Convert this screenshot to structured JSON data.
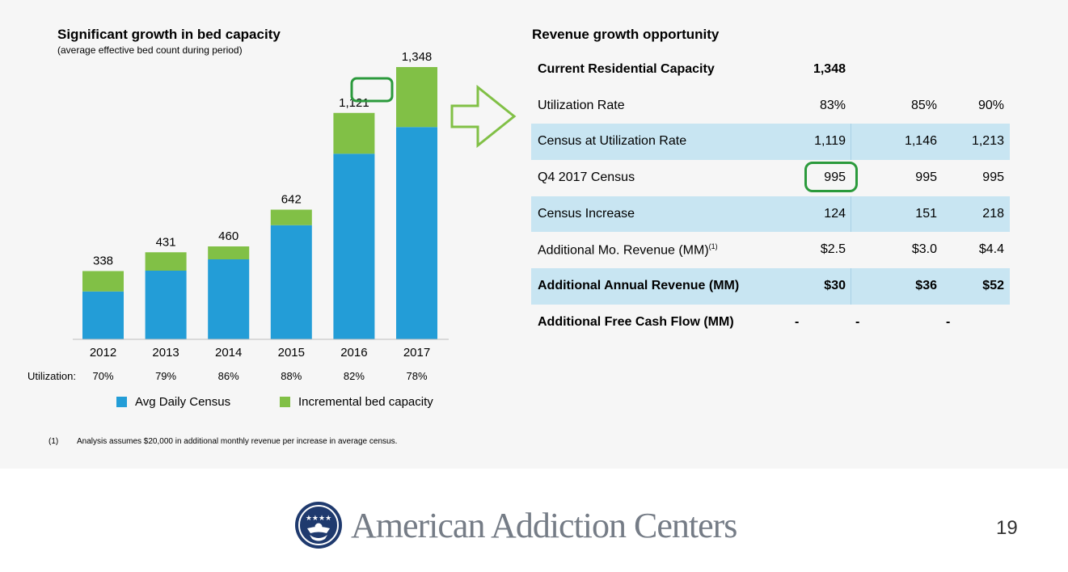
{
  "left_panel": {
    "title": "Significant growth in bed capacity",
    "subtitle": "(average effective bed count during period)",
    "utilization_label": "Utilization:",
    "utilization": [
      "70%",
      "79%",
      "86%",
      "88%",
      "82%",
      "78%"
    ],
    "legend": [
      "Avg Daily Census",
      "Incremental bed capacity"
    ]
  },
  "chart_data": {
    "type": "bar",
    "stacked": true,
    "categories": [
      "2012",
      "2013",
      "2014",
      "2015",
      "2016",
      "2017"
    ],
    "series": [
      {
        "name": "Avg Daily Census",
        "values": [
          237,
          340,
          396,
          565,
          919,
          1051
        ],
        "color": "#239dd7"
      },
      {
        "name": "Incremental bed capacity",
        "values": [
          101,
          91,
          64,
          77,
          202,
          297
        ],
        "color": "#81c046"
      }
    ],
    "totals": [
      "338",
      "431",
      "460",
      "642",
      "1,121",
      "1,348"
    ],
    "ylim": [
      0,
      1400
    ],
    "grid": false,
    "legend_placement": "bottom"
  },
  "right_panel": {
    "title": "Revenue growth opportunity",
    "rows": [
      {
        "label": "Current Residential Capacity",
        "values": [
          "1,348",
          "",
          ""
        ]
      },
      {
        "label": "Utilization Rate",
        "values": [
          "83%",
          "85%",
          "90%"
        ]
      },
      {
        "label": "Census at Utilization Rate",
        "values": [
          "1,119",
          "1,146",
          "1,213"
        ]
      },
      {
        "label": "Q4 2017 Census",
        "values": [
          "995",
          "995",
          "995"
        ]
      },
      {
        "label": "Census Increase",
        "values": [
          "124",
          "151",
          "218"
        ]
      },
      {
        "label": "Additional Mo. Revenue (MM)",
        "sup": "(1)",
        "values": [
          "$2.5",
          "$3.0",
          "$4.4"
        ]
      },
      {
        "label": "Additional Annual Revenue (MM)",
        "values": [
          "$30",
          "$36",
          "$52"
        ]
      },
      {
        "label": "Additional Free Cash Flow (MM)",
        "values": [
          "-",
          "-",
          "-"
        ]
      }
    ]
  },
  "footnote": {
    "marker": "(1)",
    "text": "Analysis assumes $20,000 in additional monthly revenue per increase in average census."
  },
  "footer": {
    "logo_text": "American Addiction Centers",
    "page_number": "19"
  },
  "colors": {
    "census_blue": "#239dd7",
    "capacity_green": "#81c046",
    "highlight_green": "#2b9a3c",
    "table_shade": "#c8e5f2"
  },
  "icons": [
    "right-arrow-icon",
    "aac-logo-icon"
  ]
}
